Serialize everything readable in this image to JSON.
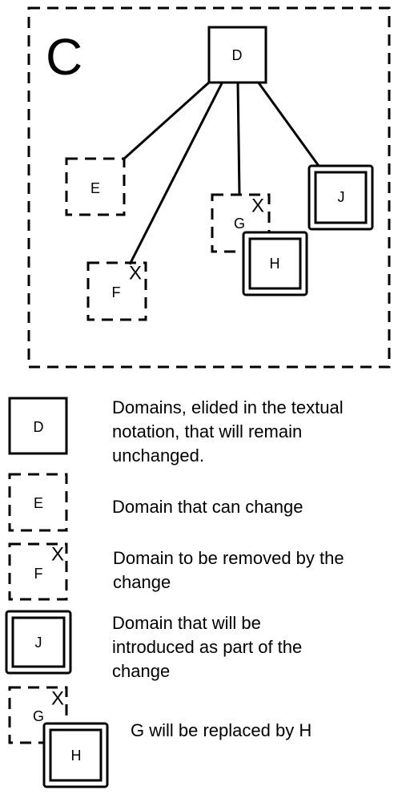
{
  "diagram": {
    "container_label": "C",
    "nodes": {
      "D": "D",
      "E": "E",
      "F": "F",
      "G": "G",
      "H": "H",
      "J": "J"
    },
    "remove_mark": "X"
  },
  "legend": {
    "items": [
      {
        "box_label": "D",
        "text": "Domains, elided in the textual notation, that will remain unchanged."
      },
      {
        "box_label": "E",
        "text": "Domain that can change"
      },
      {
        "box_label": "F",
        "text": "Domain to be removed by the change"
      },
      {
        "box_label": "J",
        "text": "Domain that will be introduced as part of the change"
      },
      {
        "box_label": "G",
        "box_label_2": "H",
        "text": "G will be replaced by H"
      }
    ]
  }
}
